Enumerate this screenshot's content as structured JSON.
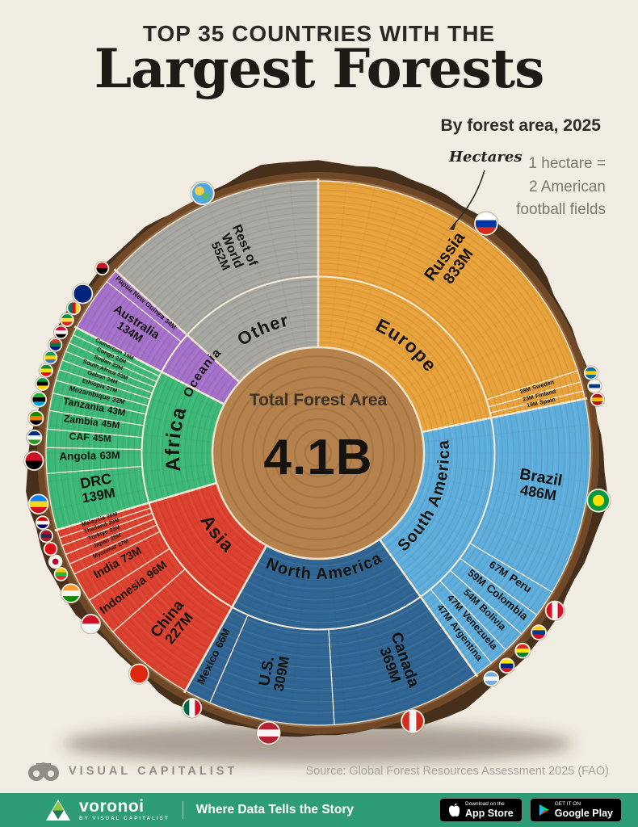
{
  "header": {
    "kicker": "TOP 35 COUNTRIES WITH THE",
    "title": "Largest Forests",
    "subtitle": "By forest area, 2025"
  },
  "annotations": {
    "units_label": "Hectares",
    "note_lines": [
      "1 hectare =",
      "2 American",
      "football fields"
    ]
  },
  "chart_data": {
    "type": "sunburst",
    "unit": "hectares, values in millions (M)",
    "center_label": "Total Forest Area",
    "center_value": "4.1B",
    "start_angle_deg": 0,
    "direction": "clockwise",
    "groups": [
      {
        "name": "Europe",
        "color": "#E8A23B",
        "items": [
          {
            "name": "Russia",
            "value": 833,
            "label": "833M",
            "flag": {
              "t": "h",
              "c": [
                "#ffffff",
                "#0039a6",
                "#d52b1e"
              ]
            }
          },
          {
            "name": "Sweden",
            "value": 28,
            "label": "28M",
            "flag": {
              "t": "h",
              "c": [
                "#006aa7",
                "#fecc00",
                "#006aa7"
              ]
            }
          },
          {
            "name": "Finland",
            "value": 23,
            "label": "23M",
            "flag": {
              "t": "h",
              "c": [
                "#f5f5f5",
                "#003580",
                "#f5f5f5"
              ]
            }
          },
          {
            "name": "Spain",
            "value": 19,
            "label": "19M",
            "flag": {
              "t": "h",
              "c": [
                "#aa151b",
                "#f1bf00",
                "#aa151b"
              ]
            }
          }
        ]
      },
      {
        "name": "South America",
        "color": "#5EAEDD",
        "items": [
          {
            "name": "Brazil",
            "value": 486,
            "label": "486M",
            "flag": {
              "t": "disc",
              "c": [
                "#009c3b",
                "#ffdf00"
              ]
            }
          },
          {
            "name": "Peru",
            "value": 67,
            "label": "67M",
            "flag": {
              "t": "v",
              "c": [
                "#d91023",
                "#f5f5f5",
                "#d91023"
              ]
            }
          },
          {
            "name": "Colombia",
            "value": 59,
            "label": "59M",
            "flag": {
              "t": "h",
              "c": [
                "#fcd116",
                "#003893",
                "#ce1126"
              ]
            }
          },
          {
            "name": "Bolivia",
            "value": 54,
            "label": "54M",
            "flag": {
              "t": "h",
              "c": [
                "#d52b1e",
                "#f9e300",
                "#007934"
              ]
            }
          },
          {
            "name": "Venezuela",
            "value": 47,
            "label": "47M",
            "flag": {
              "t": "h",
              "c": [
                "#f9e300",
                "#00247d",
                "#cf142b"
              ]
            }
          },
          {
            "name": "Argentina",
            "value": 47,
            "label": "47M",
            "flag": {
              "t": "h",
              "c": [
                "#74acdf",
                "#f5f5f5",
                "#74acdf"
              ]
            }
          }
        ]
      },
      {
        "name": "North America",
        "color": "#306695",
        "items": [
          {
            "name": "Canada",
            "value": 369,
            "label": "369M",
            "flag": {
              "t": "v",
              "c": [
                "#d52b1e",
                "#f5f5f5",
                "#d52b1e"
              ]
            }
          },
          {
            "name": "U.S.",
            "value": 309,
            "label": "309M",
            "flag": {
              "t": "h",
              "c": [
                "#b22234",
                "#f5f5f5",
                "#b22234"
              ]
            }
          },
          {
            "name": "Mexico",
            "value": 66,
            "label": "66M",
            "flag": {
              "t": "v",
              "c": [
                "#006847",
                "#f5f5f5",
                "#ce1126"
              ]
            }
          }
        ]
      },
      {
        "name": "Asia",
        "color": "#DD4130",
        "items": [
          {
            "name": "China",
            "value": 227,
            "label": "227M",
            "flag": {
              "t": "h",
              "c": [
                "#de2910"
              ]
            }
          },
          {
            "name": "Indonesia",
            "value": 96,
            "label": "96M",
            "flag": {
              "t": "h",
              "c": [
                "#ce1126",
                "#f5f5f5"
              ]
            }
          },
          {
            "name": "India",
            "value": 73,
            "label": "73M",
            "flag": {
              "t": "h",
              "c": [
                "#ff9933",
                "#f5f5f5",
                "#138808"
              ]
            }
          },
          {
            "name": "Myanmar",
            "value": 27,
            "label": "27M",
            "flag": {
              "t": "h",
              "c": [
                "#fecb00",
                "#34b233",
                "#ea2839"
              ]
            }
          },
          {
            "name": "Japan",
            "value": 25,
            "label": "25M",
            "flag": {
              "t": "disc",
              "c": [
                "#f5f5f5",
                "#bc002d"
              ]
            }
          },
          {
            "name": "Türkiye",
            "value": 23,
            "label": "23M",
            "flag": {
              "t": "h",
              "c": [
                "#e30a17"
              ]
            }
          },
          {
            "name": "Thailand",
            "value": 20,
            "label": "20M",
            "flag": {
              "t": "h",
              "c": [
                "#a51931",
                "#2d2a4a",
                "#a51931"
              ]
            }
          },
          {
            "name": "Malaysia",
            "value": 20,
            "label": "20M",
            "flag": {
              "t": "h",
              "c": [
                "#cc0001",
                "#f5f5f5",
                "#010066"
              ]
            }
          }
        ]
      },
      {
        "name": "Africa",
        "color": "#3CB878",
        "items": [
          {
            "name": "DRC",
            "value": 139,
            "label": "139M",
            "flag": {
              "t": "h",
              "c": [
                "#007fff",
                "#f7d618",
                "#ce1021"
              ]
            }
          },
          {
            "name": "Angola",
            "value": 63,
            "label": "63M",
            "flag": {
              "t": "h",
              "c": [
                "#ce1126",
                "#000000"
              ]
            }
          },
          {
            "name": "CAF",
            "value": 45,
            "label": "45M",
            "flag": {
              "t": "h",
              "c": [
                "#003082",
                "#f5f5f5",
                "#289728"
              ]
            }
          },
          {
            "name": "Zambia",
            "value": 45,
            "label": "45M",
            "flag": {
              "t": "h",
              "c": [
                "#198a00",
                "#ef7d00",
                "#000000"
              ]
            }
          },
          {
            "name": "Tanzania",
            "value": 43,
            "label": "43M",
            "flag": {
              "t": "h",
              "c": [
                "#1eb53a",
                "#000000",
                "#00a3dd"
              ]
            }
          },
          {
            "name": "Mozambique",
            "value": 32,
            "label": "32M",
            "flag": {
              "t": "h",
              "c": [
                "#009639",
                "#000000",
                "#ffd100"
              ]
            }
          },
          {
            "name": "Ethiopia",
            "value": 27,
            "label": "27M",
            "flag": {
              "t": "h",
              "c": [
                "#078930",
                "#fcdd09",
                "#da121a"
              ]
            }
          },
          {
            "name": "Gabon",
            "value": 24,
            "label": "24M",
            "flag": {
              "t": "h",
              "c": [
                "#009e60",
                "#fcd116",
                "#3a75c4"
              ]
            }
          },
          {
            "name": "South Africa",
            "value": 23,
            "label": "23M",
            "flag": {
              "t": "h",
              "c": [
                "#de3831",
                "#007a4d",
                "#001489"
              ]
            }
          },
          {
            "name": "Sudan",
            "value": 22,
            "label": "22M",
            "flag": {
              "t": "h",
              "c": [
                "#d21034",
                "#f5f5f5",
                "#000000"
              ]
            }
          },
          {
            "name": "Congo",
            "value": 22,
            "label": "22M",
            "flag": {
              "t": "h",
              "c": [
                "#009543",
                "#fbde4a",
                "#dc241f"
              ]
            }
          },
          {
            "name": "Cameroon",
            "value": 19,
            "label": "19M",
            "flag": {
              "t": "v",
              "c": [
                "#007a5e",
                "#ce1126",
                "#fcd116"
              ]
            }
          }
        ]
      },
      {
        "name": "Oceania",
        "color": "#A471CB",
        "items": [
          {
            "name": "Australia",
            "value": 134,
            "label": "134M",
            "flag": {
              "t": "h",
              "c": [
                "#00247d"
              ]
            }
          },
          {
            "name": "Papua New Guinea",
            "value": 34,
            "label": "34M",
            "flag": {
              "t": "h",
              "c": [
                "#ce1126",
                "#000000"
              ]
            }
          }
        ]
      },
      {
        "name": "Other",
        "color": "#A7A7A2",
        "items": [
          {
            "name": "Rest of World",
            "value": 552,
            "label": "552M",
            "flag": {
              "t": "globe",
              "c": []
            }
          }
        ]
      }
    ]
  },
  "footer": {
    "brand": "VISUAL CAPITALIST",
    "source": "Source: Global Forest Resources Assessment 2025 (FAO)",
    "bar": {
      "logo_text": "voronoi",
      "logo_sub": "BY VISUAL CAPITALIST",
      "tagline": "Where Data Tells the Story",
      "appstore": {
        "line1": "Download on the",
        "line2": "App Store"
      },
      "googleplay": {
        "line1": "GET IT ON",
        "line2": "Google Play"
      }
    }
  }
}
